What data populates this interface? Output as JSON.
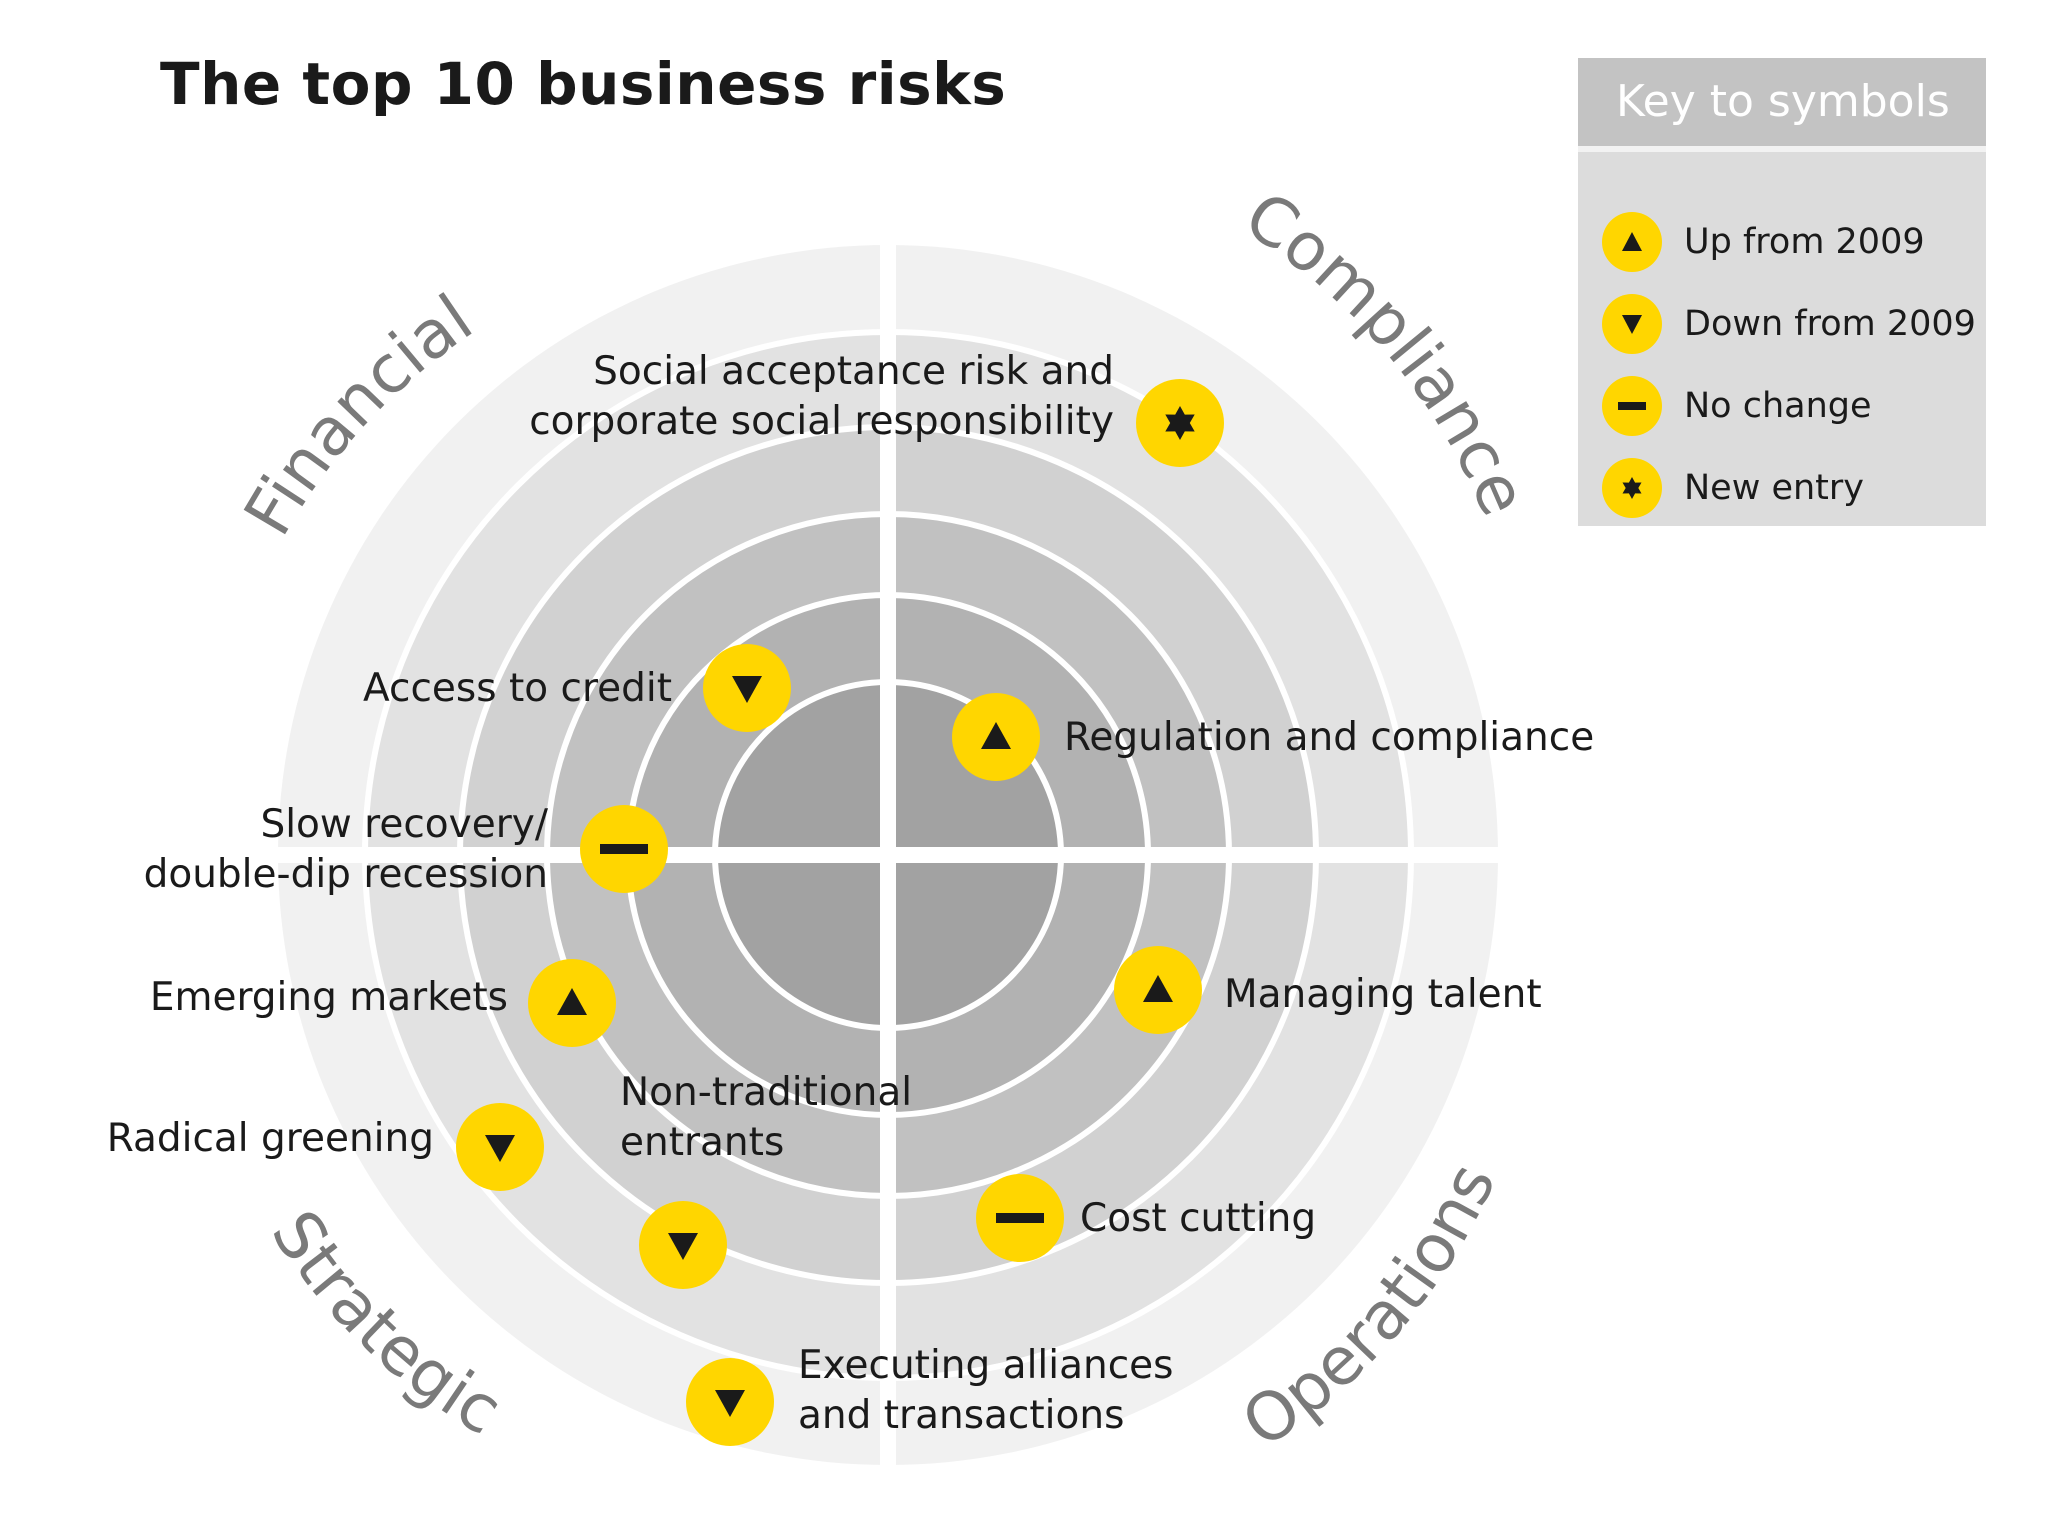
{
  "title": "The top 10 business risks",
  "colors": {
    "accent": "#ffd600",
    "symbol": "#1a1a1a",
    "ring_outer": "#f1f1f1",
    "ring_1": "#e2e2e2",
    "ring_2": "#d1d1d1",
    "ring_3": "#c1c1c1",
    "ring_4": "#b2b2b2",
    "ring_center": "#a2a2a2"
  },
  "quadrants": {
    "financial": "Financial",
    "compliance": "Compliance",
    "strategic": "Strategic",
    "operations": "Operations"
  },
  "key": {
    "title": "Key to symbols",
    "items": [
      {
        "symbol": "up-triangle-icon",
        "label": "Up from 2009"
      },
      {
        "symbol": "down-triangle-icon",
        "label": "Down from 2009"
      },
      {
        "symbol": "dash-icon",
        "label": "No change"
      },
      {
        "symbol": "star-icon",
        "label": "New entry"
      }
    ]
  },
  "risks": [
    {
      "rank": 1,
      "lines": [
        "Regulation and compliance"
      ],
      "symbol": "up",
      "quadrant": "compliance"
    },
    {
      "rank": 2,
      "lines": [
        "Access to credit"
      ],
      "symbol": "down",
      "quadrant": "financial"
    },
    {
      "rank": 3,
      "lines": [
        "Slow recovery/",
        "double-dip recession"
      ],
      "symbol": "same",
      "quadrant": "financial"
    },
    {
      "rank": 4,
      "lines": [
        "Managing talent"
      ],
      "symbol": "up",
      "quadrant": "operations"
    },
    {
      "rank": 5,
      "lines": [
        "Emerging markets"
      ],
      "symbol": "up",
      "quadrant": "strategic"
    },
    {
      "rank": 6,
      "lines": [
        "Non-traditional",
        "entrants"
      ],
      "symbol": "down",
      "quadrant": "strategic"
    },
    {
      "rank": 7,
      "lines": [
        "Cost cutting"
      ],
      "symbol": "same",
      "quadrant": "operations"
    },
    {
      "rank": 8,
      "lines": [
        "Radical greening"
      ],
      "symbol": "down",
      "quadrant": "strategic"
    },
    {
      "rank": 9,
      "lines": [
        "Social acceptance risk and",
        "corporate social responsibility"
      ],
      "symbol": "new",
      "quadrant": "compliance"
    },
    {
      "rank": 10,
      "lines": [
        "Executing alliances",
        "and transactions"
      ],
      "symbol": "down",
      "quadrant": "strategic"
    }
  ]
}
